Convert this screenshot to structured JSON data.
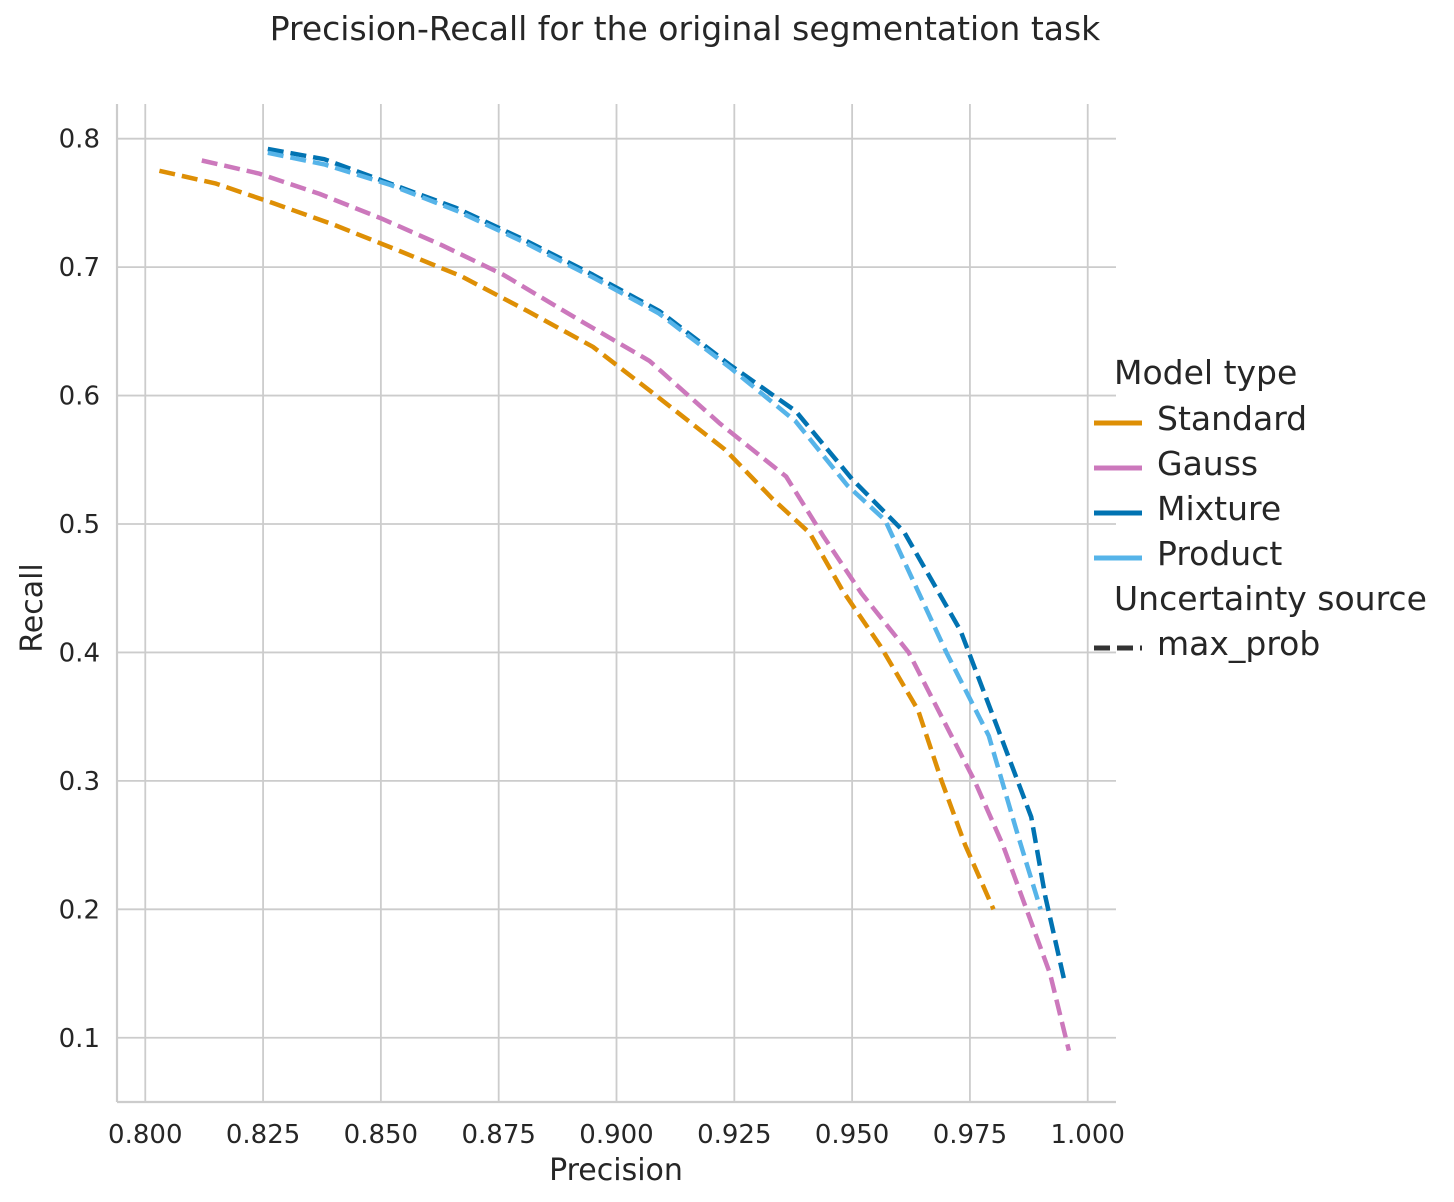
{
  "chart_data": {
    "type": "line",
    "title": "Precision-Recall for the original segmentation task",
    "xlabel": "Precision",
    "ylabel": "Recall",
    "xlim": [
      0.794,
      1.006
    ],
    "ylim": [
      0.05,
      0.827
    ],
    "xticks": [
      "0.800",
      "0.825",
      "0.850",
      "0.875",
      "0.900",
      "0.925",
      "0.950",
      "0.975",
      "1.000"
    ],
    "yticks": [
      "0.1",
      "0.2",
      "0.3",
      "0.4",
      "0.5",
      "0.6",
      "0.7",
      "0.8"
    ],
    "grid": true,
    "legend_position": "right",
    "legend": {
      "hue_title": "Model type",
      "style_title": "Uncertainty source",
      "style_entries": [
        {
          "label": "max_prob",
          "dashed": true,
          "color": "#333333"
        }
      ]
    },
    "series": [
      {
        "name": "Standard",
        "color": "#DE8F05",
        "points": [
          [
            0.803,
            0.775
          ],
          [
            0.815,
            0.765
          ],
          [
            0.827,
            0.75
          ],
          [
            0.84,
            0.733
          ],
          [
            0.853,
            0.714
          ],
          [
            0.867,
            0.693
          ],
          [
            0.881,
            0.666
          ],
          [
            0.895,
            0.638
          ],
          [
            0.907,
            0.604
          ],
          [
            0.923,
            0.558
          ],
          [
            0.933,
            0.52
          ],
          [
            0.941,
            0.493
          ],
          [
            0.948,
            0.448
          ],
          [
            0.956,
            0.405
          ],
          [
            0.964,
            0.355
          ],
          [
            0.969,
            0.3
          ],
          [
            0.974,
            0.25
          ],
          [
            0.98,
            0.2
          ]
        ]
      },
      {
        "name": "Gauss",
        "color": "#CC78BC",
        "points": [
          [
            0.812,
            0.783
          ],
          [
            0.824,
            0.773
          ],
          [
            0.837,
            0.757
          ],
          [
            0.85,
            0.738
          ],
          [
            0.863,
            0.717
          ],
          [
            0.876,
            0.694
          ],
          [
            0.892,
            0.659
          ],
          [
            0.907,
            0.627
          ],
          [
            0.922,
            0.578
          ],
          [
            0.936,
            0.537
          ],
          [
            0.944,
            0.49
          ],
          [
            0.952,
            0.446
          ],
          [
            0.962,
            0.4
          ],
          [
            0.969,
            0.35
          ],
          [
            0.976,
            0.3
          ],
          [
            0.982,
            0.25
          ],
          [
            0.987,
            0.2
          ],
          [
            0.992,
            0.15
          ],
          [
            0.996,
            0.09
          ]
        ]
      },
      {
        "name": "Mixture",
        "color": "#0173B2",
        "points": [
          [
            0.826,
            0.792
          ],
          [
            0.838,
            0.784
          ],
          [
            0.852,
            0.765
          ],
          [
            0.866,
            0.746
          ],
          [
            0.88,
            0.722
          ],
          [
            0.895,
            0.694
          ],
          [
            0.909,
            0.666
          ],
          [
            0.924,
            0.624
          ],
          [
            0.938,
            0.588
          ],
          [
            0.95,
            0.535
          ],
          [
            0.961,
            0.494
          ],
          [
            0.973,
            0.417
          ],
          [
            0.981,
            0.34
          ],
          [
            0.988,
            0.272
          ],
          [
            0.991,
            0.21
          ],
          [
            0.995,
            0.145
          ]
        ]
      },
      {
        "name": "Product",
        "color": "#56B4E9",
        "points": [
          [
            0.826,
            0.789
          ],
          [
            0.838,
            0.78
          ],
          [
            0.852,
            0.764
          ],
          [
            0.866,
            0.744
          ],
          [
            0.88,
            0.72
          ],
          [
            0.895,
            0.692
          ],
          [
            0.909,
            0.664
          ],
          [
            0.924,
            0.622
          ],
          [
            0.938,
            0.58
          ],
          [
            0.949,
            0.53
          ],
          [
            0.957,
            0.503
          ],
          [
            0.97,
            0.4
          ],
          [
            0.979,
            0.335
          ],
          [
            0.985,
            0.26
          ],
          [
            0.99,
            0.2
          ]
        ]
      }
    ]
  }
}
